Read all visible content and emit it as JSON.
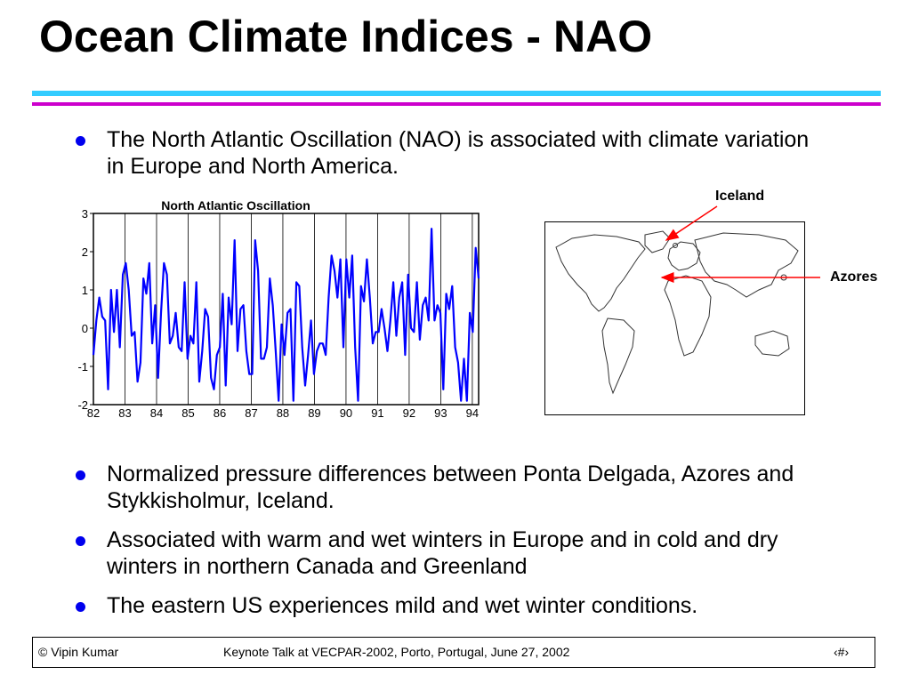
{
  "slide": {
    "title": "Ocean Climate Indices - NAO",
    "colors": {
      "accent_cyan": "#33ccff",
      "accent_magenta": "#cc00cc",
      "bullet": "#0000ee",
      "arrow": "#ff0000",
      "series": "#0000ff"
    }
  },
  "bullets": [
    "The North Atlantic Oscillation (NAO) is associated with climate variation in Europe and North America.",
    "Normalized pressure differences between Ponta Delgada, Azores and Stykkisholmur, Iceland.",
    "Associated with warm and wet winters in Europe and in cold and dry winters in northern Canada and Greenland",
    "The eastern US experiences mild and wet winter conditions."
  ],
  "map": {
    "label_iceland": "Iceland",
    "label_azores": "Azores"
  },
  "footer": {
    "copyright": "© Vipin Kumar",
    "talk": "Keynote Talk at VECPAR-2002, Porto, Portugal, June 27, 2002",
    "page": "‹#›"
  },
  "chart_data": {
    "type": "line",
    "title": "North Atlantic Oscillation",
    "xlabel": "",
    "ylabel": "",
    "xlim": [
      82,
      94.2
    ],
    "ylim": [
      -2,
      3
    ],
    "x_ticks": [
      "82",
      "83",
      "84",
      "85",
      "86",
      "87",
      "88",
      "89",
      "90",
      "91",
      "92",
      "93",
      "94"
    ],
    "y_ticks": [
      "3",
      "2",
      "1",
      "0",
      "-1",
      "-2"
    ],
    "grid": "vertical",
    "series": [
      {
        "values": [
          -0.7,
          0.2,
          0.8,
          0.3,
          0.2,
          -1.6,
          1.0,
          -0.1,
          1.0,
          -0.5,
          1.4,
          1.7,
          1.0,
          -0.2,
          -0.1,
          -1.4,
          -0.9,
          1.3,
          0.9,
          1.7,
          -0.4,
          0.6,
          -1.3,
          0.4,
          1.7,
          1.4,
          -0.4,
          -0.2,
          0.4,
          -0.5,
          -0.6,
          1.2,
          -0.8,
          -0.2,
          -0.4,
          1.2,
          -1.4,
          -0.6,
          0.5,
          0.3,
          -1.3,
          -1.6,
          -0.7,
          -0.5,
          0.9,
          -1.5,
          0.8,
          0.1,
          2.3,
          -0.6,
          0.5,
          0.6,
          -0.6,
          -1.2,
          -1.2,
          2.3,
          1.5,
          -0.8,
          -0.8,
          -0.5,
          1.3,
          0.6,
          -0.6,
          -1.9,
          0.1,
          -0.7,
          0.4,
          0.5,
          -1.9,
          1.2,
          1.1,
          -0.5,
          -1.5,
          -0.7,
          0.2,
          -1.2,
          -0.6,
          -0.4,
          -0.4,
          -0.7,
          0.8,
          1.9,
          1.5,
          0.8,
          1.8,
          -0.5,
          1.8,
          0.8,
          1.9,
          -0.5,
          -1.9,
          1.1,
          0.7,
          1.8,
          0.8,
          -0.4,
          -0.1,
          -0.1,
          0.5,
          0.0,
          -0.6,
          0.2,
          1.2,
          -0.2,
          0.8,
          1.2,
          -0.7,
          1.4,
          0.0,
          -0.1,
          1.2,
          -0.3,
          0.6,
          0.8,
          0.2,
          2.6,
          0.2,
          0.6,
          0.4,
          -1.6,
          0.9,
          0.5,
          1.1,
          -0.5,
          -0.9,
          -1.9,
          -0.8,
          -1.9,
          0.4,
          -0.1,
          2.1,
          1.3
        ]
      }
    ]
  }
}
